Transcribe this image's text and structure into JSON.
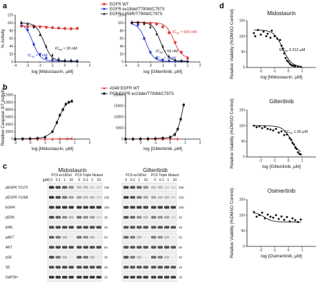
{
  "panels": {
    "a": "a",
    "b": "b",
    "c": "c",
    "d": "d"
  },
  "colors": {
    "wt": "#e03030",
    "ex19": "#2636c8",
    "l858": "#111111",
    "black": "#111111"
  },
  "legend_a": {
    "items": [
      {
        "label": "EGFR WT",
        "color": "#e03030",
        "marker": "square"
      },
      {
        "label": "EGFR ex19del/T790M/C797S",
        "color": "#2636c8",
        "marker": "circle"
      },
      {
        "label": "EGFR L858R/T790M/C797S",
        "color": "#111111",
        "marker": "triangle"
      }
    ]
  },
  "legend_b": {
    "items": [
      {
        "label": "A549 EGFR WT",
        "color": "#e03030",
        "marker": "triangle"
      },
      {
        "label": "PC9 EGFR ex19del/T790M/C797S",
        "color": "#111111",
        "marker": "square"
      }
    ]
  },
  "chart_data": [
    {
      "id": "a-midostaurin",
      "type": "line",
      "xlabel": "log [Midostaurin, µM]",
      "ylabel": "% Activity",
      "xlim": [
        -4,
        2
      ],
      "ylim": [
        0,
        120
      ],
      "xticks": [
        "-4",
        "-3",
        "-2",
        "-1",
        "0",
        "1",
        "2"
      ],
      "yticks": [
        "0",
        "20",
        "40",
        "60",
        "80",
        "100",
        "120"
      ],
      "annotations": [
        {
          "text": "IC50 ≈ 4 nM",
          "color": "#2636c8"
        },
        {
          "text": "IC50 ≈ 30 nM",
          "color": "#111111"
        }
      ],
      "series": [
        {
          "name": "EGFR WT",
          "color": "#e03030",
          "marker": "square",
          "x": [
            -3.5,
            -3.0,
            -2.5,
            -2.0,
            -1.5,
            -1.0,
            -0.5,
            0.0,
            0.5,
            1.0
          ],
          "y": [
            92,
            90,
            91,
            90,
            89,
            88,
            87,
            86,
            85,
            86
          ]
        },
        {
          "name": "EGFR ex19del/T790M/C797S",
          "color": "#2636c8",
          "marker": "circle",
          "x": [
            -3.5,
            -3.0,
            -2.5,
            -2.0,
            -1.5,
            -1.0,
            -0.5,
            0.0,
            0.5,
            1.0
          ],
          "y": [
            100,
            82,
            45,
            20,
            10,
            6,
            4,
            3,
            3,
            2
          ]
        },
        {
          "name": "EGFR L858R/T790M/C797S",
          "color": "#111111",
          "marker": "triangle",
          "x": [
            -3.5,
            -3.0,
            -2.5,
            -2.0,
            -1.5,
            -1.0,
            -0.5,
            0.0,
            0.5,
            1.0
          ],
          "y": [
            100,
            98,
            90,
            70,
            40,
            18,
            8,
            4,
            3,
            2
          ]
        }
      ]
    },
    {
      "id": "a-gilteritinib",
      "type": "line",
      "xlabel": "log [Gilteritinib, µM]",
      "ylabel": "",
      "xlim": [
        -4,
        2
      ],
      "ylim": [
        0,
        120
      ],
      "xticks": [
        "-4",
        "-3",
        "-2",
        "-1",
        "0",
        "1",
        "2"
      ],
      "yticks": [
        "0",
        "20",
        "40",
        "60",
        "80",
        "100",
        "120"
      ],
      "annotations": [
        {
          "text": "IC50 ≈ 500 nM",
          "color": "#e03030"
        },
        {
          "text": "IC50 ≈ 55 nM",
          "color": "#111111"
        },
        {
          "text": "IC50 ≈ 3 nM",
          "color": "#2636c8"
        }
      ],
      "series": [
        {
          "name": "EGFR WT",
          "color": "#e03030",
          "marker": "square",
          "x": [
            -3.5,
            -3.0,
            -2.5,
            -2.0,
            -1.5,
            -1.0,
            -0.5,
            0.0,
            0.5,
            1.0
          ],
          "y": [
            100,
            101,
            100,
            99,
            97,
            90,
            75,
            50,
            25,
            10
          ]
        },
        {
          "name": "EGFR ex19del/T790M/C797S",
          "color": "#2636c8",
          "marker": "circle",
          "x": [
            -3.5,
            -3.0,
            -2.5,
            -2.0,
            -1.5,
            -1.0,
            -0.5,
            0.0,
            0.5,
            1.0
          ],
          "y": [
            100,
            95,
            60,
            25,
            10,
            5,
            3,
            2,
            2,
            1
          ]
        },
        {
          "name": "EGFR L858R/T790M/C797S",
          "color": "#111111",
          "marker": "triangle",
          "x": [
            -3.5,
            -3.0,
            -2.5,
            -2.0,
            -1.5,
            -1.0,
            -0.5,
            0.0,
            0.5,
            1.0
          ],
          "y": [
            102,
            101,
            98,
            90,
            72,
            40,
            15,
            6,
            3,
            2
          ]
        }
      ]
    },
    {
      "id": "b-midostaurin",
      "type": "line",
      "xlabel": "log [Midostaurin, µM]",
      "ylabel": "Relative Caspase 3/7 Activity",
      "xlim": [
        -3,
        2
      ],
      "ylim": [
        0,
        12000
      ],
      "xticks": [
        "-3",
        "-2",
        "-1",
        "0",
        "1",
        "2"
      ],
      "yticks": [
        "0",
        "2000",
        "4000",
        "6000",
        "8000",
        "10000",
        "12000"
      ],
      "series": [
        {
          "name": "A549 EGFR WT",
          "color": "#e03030",
          "marker": "triangle",
          "x": [
            -3.0,
            -2.5,
            -2.0,
            -1.5,
            -1.0,
            -0.5,
            0.0,
            0.5,
            0.8
          ],
          "y": [
            0,
            0,
            0,
            0,
            0,
            0,
            50,
            100,
            150
          ]
        },
        {
          "name": "PC9 EGFR ex19del/T790M/C797S",
          "color": "#111111",
          "marker": "square",
          "x": [
            -3.0,
            -2.5,
            -2.0,
            -1.5,
            -1.0,
            -0.5,
            -0.2,
            0.0,
            0.2,
            0.4,
            0.6,
            0.8
          ],
          "y": [
            0,
            50,
            100,
            200,
            500,
            2000,
            4500,
            6500,
            8000,
            9500,
            10000,
            10300
          ]
        }
      ]
    },
    {
      "id": "b-gilteritinib",
      "type": "line",
      "xlabel": "log [Gilteritinib, µM]",
      "ylabel": "",
      "xlim": [
        -3,
        2
      ],
      "ylim": [
        0,
        20000
      ],
      "xticks": [
        "-3",
        "-2",
        "-1",
        "0",
        "1",
        "2"
      ],
      "yticks": [
        "0",
        "5000",
        "10000",
        "15000",
        "20000"
      ],
      "series": [
        {
          "name": "A549 EGFR WT",
          "color": "#e03030",
          "marker": "triangle",
          "x": [
            -3.0,
            -2.5,
            -2.0,
            -1.5,
            -1.0,
            -0.5,
            0.0,
            0.5
          ],
          "y": [
            0,
            0,
            0,
            0,
            0,
            0,
            50,
            100
          ]
        },
        {
          "name": "PC9 EGFR ex19del/T790M/C797S",
          "color": "#111111",
          "marker": "square",
          "x": [
            -3.0,
            -2.5,
            -2.0,
            -1.5,
            -1.0,
            -0.5,
            0.0,
            0.3,
            0.5,
            0.7,
            0.9
          ],
          "y": [
            0,
            0,
            50,
            100,
            200,
            400,
            800,
            2000,
            4500,
            9000,
            15500
          ]
        }
      ]
    },
    {
      "id": "d-midostaurin",
      "type": "scatter",
      "title": "Midostaurin",
      "xlabel": "log [Midostaurin, µM]",
      "ylabel": "Relative Viability (%DMSO Control)",
      "xlim": [
        -3,
        2
      ],
      "ylim": [
        0,
        150
      ],
      "xticks": [
        "-2",
        "-1",
        "0",
        "1"
      ],
      "yticks": [
        "0",
        "50",
        "100",
        "150"
      ],
      "annotation": "EC50 0.312 µM",
      "series": [
        {
          "name": "",
          "color": "#111111",
          "x": [
            -2.5,
            -2.4,
            -2.2,
            -2.0,
            -1.8,
            -1.6,
            -1.5,
            -1.3,
            -1.2,
            -1.0,
            -0.8,
            -0.6,
            -0.5,
            -0.4,
            -0.3,
            -0.2,
            -0.1,
            0.0,
            0.1,
            0.2,
            0.3,
            0.4,
            0.5,
            0.7,
            0.9
          ],
          "y": [
            110,
            100,
            120,
            105,
            115,
            100,
            108,
            95,
            118,
            100,
            92,
            88,
            70,
            60,
            45,
            30,
            22,
            18,
            12,
            8,
            6,
            5,
            4,
            3,
            2
          ]
        }
      ]
    },
    {
      "id": "d-gilteritinib",
      "type": "scatter",
      "title": "Gilteritinib",
      "xlabel": "log [Gilteritinib, µM]",
      "ylabel": "Relative Viability (%DMSO Control)",
      "xlim": [
        -3,
        2
      ],
      "ylim": [
        0,
        150
      ],
      "xticks": [
        "-2",
        "-1",
        "0",
        "1"
      ],
      "yticks": [
        "0",
        "50",
        "100",
        "150"
      ],
      "annotation": "EC50 1.56 µM",
      "series": [
        {
          "name": "",
          "color": "#111111",
          "x": [
            -2.5,
            -2.3,
            -2.1,
            -1.9,
            -1.7,
            -1.5,
            -1.3,
            -1.1,
            -0.9,
            -0.7,
            -0.5,
            -0.3,
            -0.1,
            0.1,
            0.2,
            0.3,
            0.4,
            0.5,
            0.6,
            0.7,
            0.8,
            0.9
          ],
          "y": [
            100,
            95,
            98,
            92,
            96,
            90,
            88,
            85,
            90,
            78,
            82,
            70,
            72,
            60,
            55,
            45,
            40,
            30,
            25,
            15,
            10,
            8
          ]
        }
      ]
    },
    {
      "id": "d-osimertinib",
      "type": "scatter",
      "title": "Osimertinib",
      "xlabel": "log [Osimertinib, µM]",
      "ylabel": "Relative Viability (%DMSO Control)",
      "xlim": [
        -3,
        2
      ],
      "ylim": [
        0,
        150
      ],
      "xticks": [
        "-2",
        "-1",
        "0",
        "1"
      ],
      "yticks": [
        "0",
        "50",
        "100",
        "150"
      ],
      "series": [
        {
          "name": "",
          "color": "#111111",
          "x": [
            -2.5,
            -2.3,
            -2.1,
            -1.9,
            -1.7,
            -1.5,
            -1.3,
            -1.1,
            -0.9,
            -0.7,
            -0.5,
            -0.3,
            -0.1,
            0.1,
            0.3,
            0.5,
            0.7,
            0.9
          ],
          "y": [
            110,
            95,
            100,
            108,
            90,
            102,
            95,
            92,
            100,
            88,
            96,
            85,
            94,
            80,
            90,
            84,
            78,
            86
          ]
        }
      ]
    }
  ],
  "blots": {
    "title_left": "Midostaurin",
    "title_right": "Gilteritinib",
    "group_left_1": "PC9 ex19Del",
    "group_left_2": "PC9 Triple Mutant",
    "group_right_1": "PC9 ex19Del",
    "group_right_2": "PC9 Triple Mutant",
    "conc_label": "[µM]",
    "concs": [
      "0",
      "0.1",
      "1",
      "10"
    ],
    "rows": [
      {
        "label": "pEGFR Y1173",
        "mw": "250",
        "intensity": [
          0.9,
          0.8,
          0.7,
          0.5,
          0.3,
          0.3,
          0.2,
          0.2
        ]
      },
      {
        "label": "pEGFR Y1068",
        "mw": "250",
        "intensity": [
          0.9,
          0.8,
          0.6,
          0.4,
          0.4,
          0.3,
          0.3,
          0.2
        ]
      },
      {
        "label": "EGFR",
        "mw": "250",
        "intensity": [
          0.9,
          0.9,
          0.9,
          0.9,
          0.9,
          0.9,
          0.9,
          0.9
        ]
      },
      {
        "label": "pERK",
        "mw": "35",
        "intensity": [
          0.8,
          0.7,
          0.5,
          0.3,
          0.6,
          0.5,
          0.4,
          0.2
        ]
      },
      {
        "label": "ERK",
        "mw": "35",
        "intensity": [
          0.8,
          0.8,
          0.8,
          0.8,
          0.8,
          0.8,
          0.8,
          0.8
        ]
      },
      {
        "label": "pAKT",
        "mw": "55",
        "intensity": [
          0.7,
          0.6,
          0.3,
          0.1,
          0.6,
          0.5,
          0.3,
          0.1
        ]
      },
      {
        "label": "AKT",
        "mw": "55",
        "intensity": [
          0.8,
          0.8,
          0.8,
          0.8,
          0.8,
          0.8,
          0.8,
          0.8
        ]
      },
      {
        "label": "pS6",
        "mw": "35",
        "intensity": [
          0.8,
          0.6,
          0.3,
          0.1,
          0.7,
          0.6,
          0.3,
          0.1
        ]
      },
      {
        "label": "S6",
        "mw": "25",
        "intensity": [
          0.8,
          0.8,
          0.8,
          0.8,
          0.8,
          0.8,
          0.8,
          0.8
        ]
      },
      {
        "label": "GAPDH",
        "mw": "35",
        "intensity": [
          0.9,
          0.9,
          0.9,
          0.9,
          0.9,
          0.9,
          0.9,
          0.9
        ]
      }
    ]
  }
}
